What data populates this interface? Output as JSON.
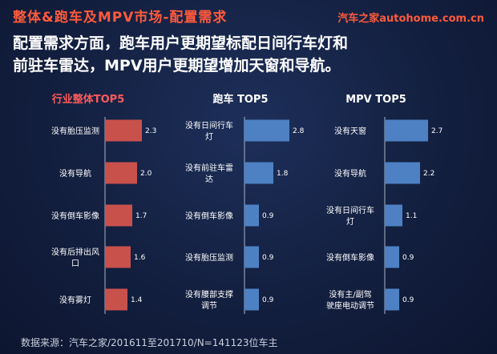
{
  "header": {
    "title": "整体&跑车及MPV市场-配置需求",
    "logo": "汽车之家autohome.com.cn",
    "subtitle_line1": "配置需求方面，跑车用户更期望标配日间行车灯和",
    "subtitle_line2": "前驻车雷达，MPV用户更期望增加天窗和导航。"
  },
  "footer": {
    "source": "数据来源：汽车之家/201611至201710/N=141123位车主"
  },
  "colors": {
    "title": "#ff5a3c",
    "red_bar": "#c9514c",
    "blue_bar": "#4d81c4",
    "panel_title_red": "#ff5a5a"
  },
  "chart_data": [
    {
      "type": "bar",
      "orientation": "horizontal",
      "title": "行业整体TOP5",
      "categories": [
        [
          "没有胎压监测"
        ],
        [
          "没有导航"
        ],
        [
          "没有倒车影像"
        ],
        [
          "没有后排出风",
          "口"
        ],
        [
          "没有雾灯"
        ]
      ],
      "values": [
        2.3,
        2.0,
        1.7,
        1.6,
        1.4
      ],
      "value_labels": [
        "2.3",
        "2.0",
        "1.7",
        "1.6",
        "1.4"
      ],
      "color": "#c9514c"
    },
    {
      "type": "bar",
      "orientation": "horizontal",
      "title": "跑车 TOP5",
      "categories": [
        [
          "没有日间行车",
          "灯"
        ],
        [
          "没有前驻车雷",
          "达"
        ],
        [
          "没有倒车影像"
        ],
        [
          "没有胎压监测"
        ],
        [
          "没有腰部支撑",
          "调节"
        ]
      ],
      "values": [
        2.8,
        1.8,
        0.9,
        0.9,
        0.9
      ],
      "value_labels": [
        "2.8",
        "1.8",
        "0.9",
        "0.9",
        "0.9"
      ],
      "color": "#4d81c4"
    },
    {
      "type": "bar",
      "orientation": "horizontal",
      "title": "MPV TOP5",
      "categories": [
        [
          "没有天窗"
        ],
        [
          "没有导航"
        ],
        [
          "没有日间行车",
          "灯"
        ],
        [
          "没有倒车影像"
        ],
        [
          "没有主/副驾",
          "驶座电动调节"
        ]
      ],
      "values": [
        2.7,
        2.2,
        1.1,
        0.9,
        0.9
      ],
      "value_labels": [
        "2.7",
        "2.2",
        "1.1",
        "0.9",
        "0.9"
      ],
      "color": "#4d81c4"
    }
  ]
}
